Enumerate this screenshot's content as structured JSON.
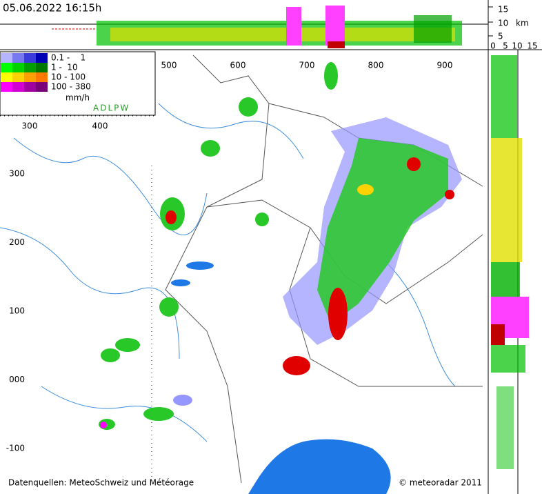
{
  "header": {
    "timestamp": "05.06.2022 16:15h"
  },
  "height_axis": {
    "labels": [
      "15",
      "10",
      "5"
    ],
    "unit": "km"
  },
  "side_axis": {
    "labels": [
      "0",
      "5",
      "10",
      "15"
    ]
  },
  "grid_labels": {
    "top": [
      "500",
      "600",
      "700",
      "800",
      "900"
    ],
    "inner_top": [
      "300",
      "400"
    ],
    "left": [
      "300",
      "200",
      "100",
      "000",
      "-100"
    ]
  },
  "legend": {
    "rows": [
      {
        "label": "0.1 -    1",
        "colors": [
          "#b4b4ff",
          "#7878f0",
          "#3c3cdc",
          "#0000b4"
        ]
      },
      {
        "label": "1 -  10",
        "colors": [
          "#00ff00",
          "#00d200",
          "#00a000",
          "#007800"
        ]
      },
      {
        "label": "10 - 100",
        "colors": [
          "#ffff00",
          "#ffd200",
          "#ffa000",
          "#ff7800"
        ]
      },
      {
        "label": "100 - 380",
        "colors": [
          "#ff00ff",
          "#d200d2",
          "#a000a0",
          "#780078"
        ]
      }
    ],
    "unit": "mm/h",
    "code": "ADLPW"
  },
  "footer": {
    "source": "Datenquellen: MeteoSchweiz und Météorage",
    "copyright": "© meteoradar 2011"
  }
}
